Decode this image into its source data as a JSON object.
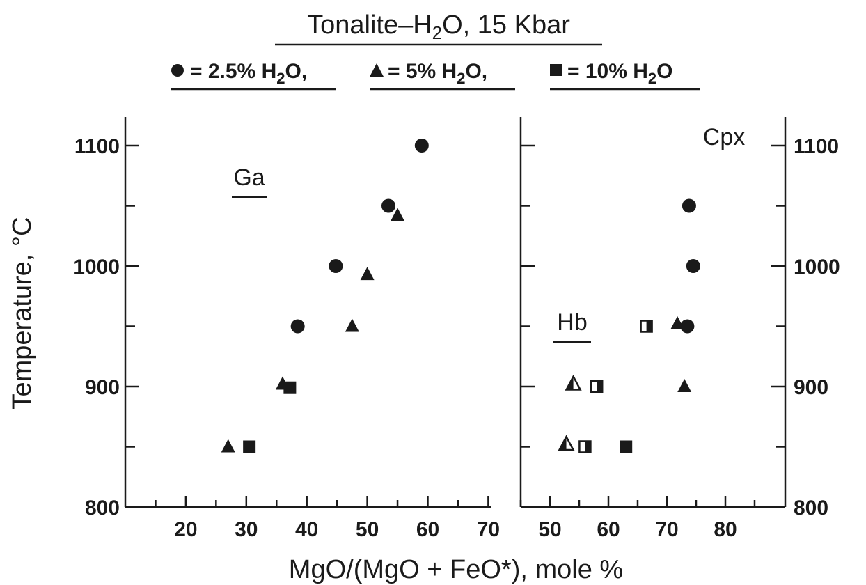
{
  "chart_data": [
    {
      "type": "scatter",
      "title": "Tonalite–H₂O, 15 Kbar",
      "legend": [
        {
          "marker": "circle",
          "label": "= 2.5% H₂O,"
        },
        {
          "marker": "triangle",
          "label": "= 5% H₂O,"
        },
        {
          "marker": "square",
          "label": "= 10% H₂O"
        }
      ],
      "xlabel": "MgO/(MgO + FeO*), mole %",
      "ylabel": "Temperature, °C",
      "ylim": [
        800,
        1125
      ],
      "yticks": [
        800,
        900,
        1000,
        1100
      ],
      "panels": [
        {
          "mineral_labels": [
            "Ga"
          ],
          "xlim": [
            10,
            70
          ],
          "xticks": [
            20,
            30,
            40,
            50,
            60,
            70
          ],
          "series": [
            {
              "marker": "circle",
              "fill": "solid",
              "points": [
                [
                  38.5,
                  950
                ],
                [
                  44.8,
                  1000
                ],
                [
                  53.5,
                  1050
                ],
                [
                  59,
                  1100
                ]
              ]
            },
            {
              "marker": "triangle",
              "fill": "solid",
              "points": [
                [
                  27,
                  850
                ],
                [
                  36,
                  902
                ],
                [
                  47.5,
                  950
                ],
                [
                  50,
                  993
                ],
                [
                  55,
                  1042
                ]
              ]
            },
            {
              "marker": "square",
              "fill": "solid",
              "points": [
                [
                  30.5,
                  850
                ],
                [
                  37.2,
                  899
                ]
              ]
            }
          ]
        },
        {
          "mineral_labels": [
            "Cpx",
            "Hb"
          ],
          "xlim": [
            45,
            90
          ],
          "xticks": [
            50,
            60,
            70,
            80
          ],
          "series": [
            {
              "marker": "circle",
              "fill": "solid",
              "points": [
                [
                  73.5,
                  950
                ],
                [
                  73.8,
                  1050
                ],
                [
                  74.5,
                  1000
                ]
              ]
            },
            {
              "marker": "triangle",
              "fill": "solid",
              "points": [
                [
                  71.8,
                  952
                ],
                [
                  73,
                  900
                ]
              ]
            },
            {
              "marker": "square",
              "fill": "solid",
              "points": [
                [
                  63,
                  850
                ]
              ]
            },
            {
              "marker": "triangle",
              "fill": "half",
              "points": [
                [
                  52.8,
                  852
                ],
                [
                  54,
                  902
                ]
              ]
            },
            {
              "marker": "square",
              "fill": "half",
              "points": [
                [
                  56,
                  850
                ],
                [
                  58,
                  900
                ],
                [
                  66.5,
                  950
                ]
              ]
            }
          ]
        }
      ]
    }
  ]
}
